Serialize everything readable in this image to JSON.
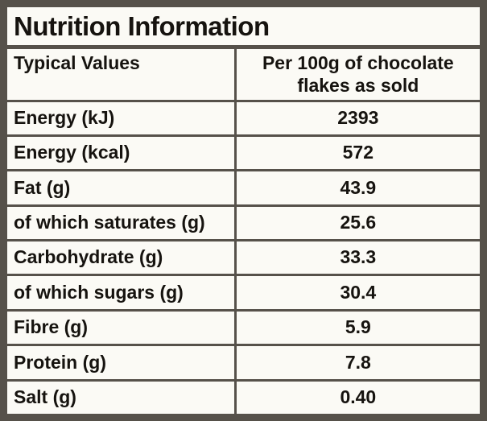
{
  "label": {
    "title": "Nutrition Information",
    "header": {
      "col1": "Typical Values",
      "col2": "Per 100g of chocolate flakes as sold"
    },
    "rows": [
      {
        "label": "Energy (kJ)",
        "value": "2393"
      },
      {
        "label": "Energy (kcal)",
        "value": "572"
      },
      {
        "label": "Fat (g)",
        "value": "43.9"
      },
      {
        "label": "of which saturates (g)",
        "value": "25.6"
      },
      {
        "label": "Carbohydrate (g)",
        "value": "33.3"
      },
      {
        "label": "of which sugars (g)",
        "value": "30.4"
      },
      {
        "label": "Fibre (g)",
        "value": "5.9"
      },
      {
        "label": "Protein (g)",
        "value": "7.8"
      },
      {
        "label": "Salt (g)",
        "value": "0.40"
      }
    ],
    "colors": {
      "frame": "#56514a",
      "panel": "#fbfaf5",
      "text": "#16130f"
    }
  }
}
